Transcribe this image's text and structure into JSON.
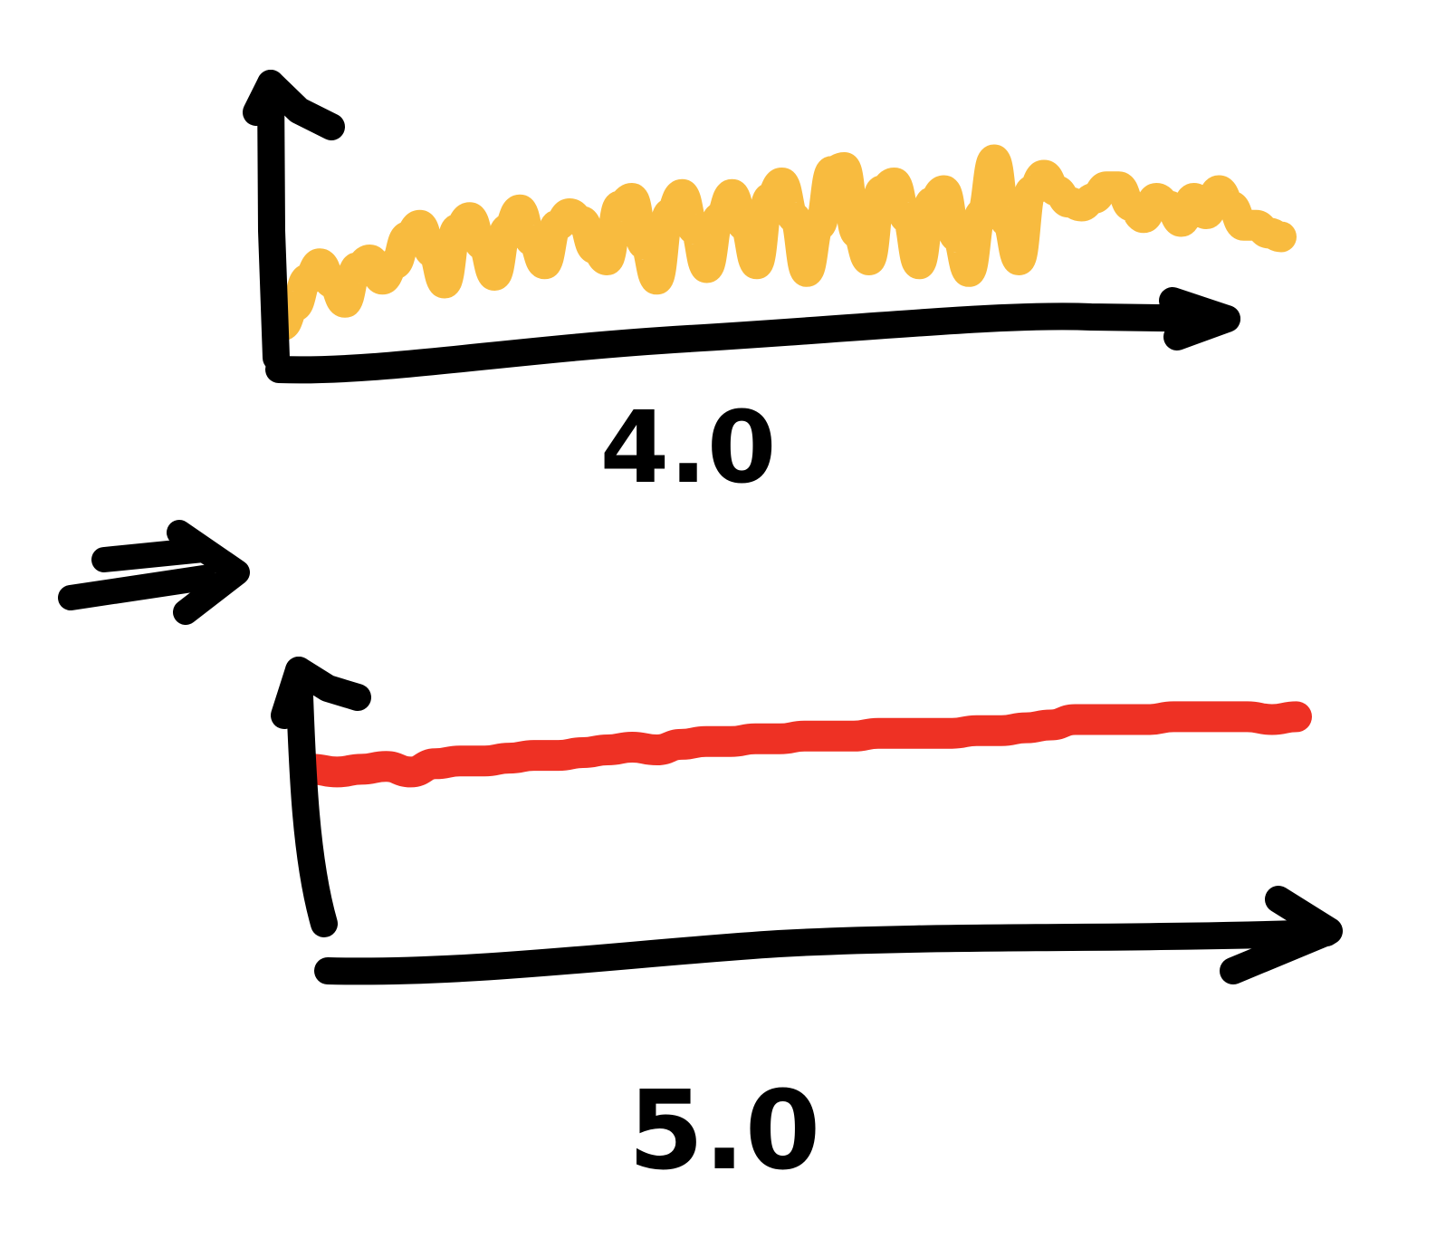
{
  "chart_data": [
    {
      "type": "line",
      "xlabel": "4.0",
      "ylabel": "",
      "title": "",
      "grid": false,
      "legend": "none",
      "axes_color": "#000000",
      "series": [
        {
          "color": "#f8bb3f",
          "x": [
            0,
            1,
            2,
            3,
            4,
            5,
            6,
            7,
            8,
            9,
            10,
            11,
            12,
            13,
            14,
            15,
            16,
            17,
            18,
            19,
            20,
            21,
            22,
            23,
            24,
            25,
            26,
            27,
            28,
            29,
            30,
            31,
            32,
            33,
            34,
            35,
            36,
            37,
            38,
            39,
            40,
            41,
            42,
            43,
            44,
            45,
            46,
            47,
            48,
            49,
            50,
            51,
            52,
            53,
            54,
            55,
            56,
            57,
            58,
            59,
            60,
            61,
            62,
            63,
            64,
            65,
            66,
            67,
            68,
            69,
            70,
            71,
            72,
            73,
            74,
            75,
            76,
            77,
            78,
            79,
            80
          ],
          "values": [
            0.3,
            0.8,
            1.5,
            1.9,
            1.4,
            0.9,
            1.8,
            2.0,
            1.5,
            1.9,
            2.6,
            2.9,
            2.2,
            1.4,
            2.8,
            3.1,
            2.4,
            1.6,
            2.8,
            3.3,
            2.5,
            1.9,
            2.9,
            3.2,
            3.0,
            2.3,
            2.0,
            3.4,
            3.6,
            2.4,
            1.5,
            3.2,
            3.7,
            2.8,
            1.8,
            3.1,
            3.7,
            2.9,
            1.9,
            3.6,
            4.0,
            3.1,
            1.7,
            2.9,
            4.3,
            4.4,
            2.7,
            2.0,
            3.8,
            4.0,
            3.1,
            1.9,
            3.5,
            3.8,
            2.6,
            1.7,
            3.2,
            4.6,
            3.0,
            2.0,
            3.8,
            4.2,
            3.8,
            3.5,
            3.4,
            3.6,
            3.9,
            3.9,
            3.4,
            3.1,
            3.6,
            3.4,
            3.0,
            3.6,
            3.2,
            3.8,
            3.4,
            2.9,
            2.9,
            2.7,
            2.6
          ]
        }
      ]
    },
    {
      "type": "line",
      "xlabel": "5.0",
      "ylabel": "",
      "title": "",
      "grid": false,
      "legend": "none",
      "axes_color": "#000000",
      "series": [
        {
          "color": "#ee3124",
          "x": [
            0,
            1,
            2,
            3,
            4,
            5,
            6,
            7,
            8,
            9,
            10,
            11,
            12,
            13,
            14,
            15,
            16,
            17,
            18,
            19,
            20,
            21,
            22,
            23,
            24,
            25,
            26,
            27,
            28,
            29,
            30,
            31,
            32,
            33,
            34,
            35,
            36,
            37,
            38,
            39,
            40
          ],
          "values": [
            7.3,
            7.2,
            7.3,
            7.4,
            7.2,
            7.5,
            7.6,
            7.6,
            7.7,
            7.8,
            7.8,
            7.9,
            8.0,
            8.1,
            8.0,
            8.2,
            8.3,
            8.3,
            8.4,
            8.4,
            8.5,
            8.5,
            8.5,
            8.6,
            8.6,
            8.6,
            8.6,
            8.7,
            8.7,
            8.8,
            8.9,
            9.1,
            9.1,
            9.1,
            9.1,
            9.2,
            9.2,
            9.2,
            9.2,
            9.1,
            9.2
          ]
        }
      ]
    }
  ],
  "connector": {
    "icon": "double-arrow-right-icon"
  }
}
